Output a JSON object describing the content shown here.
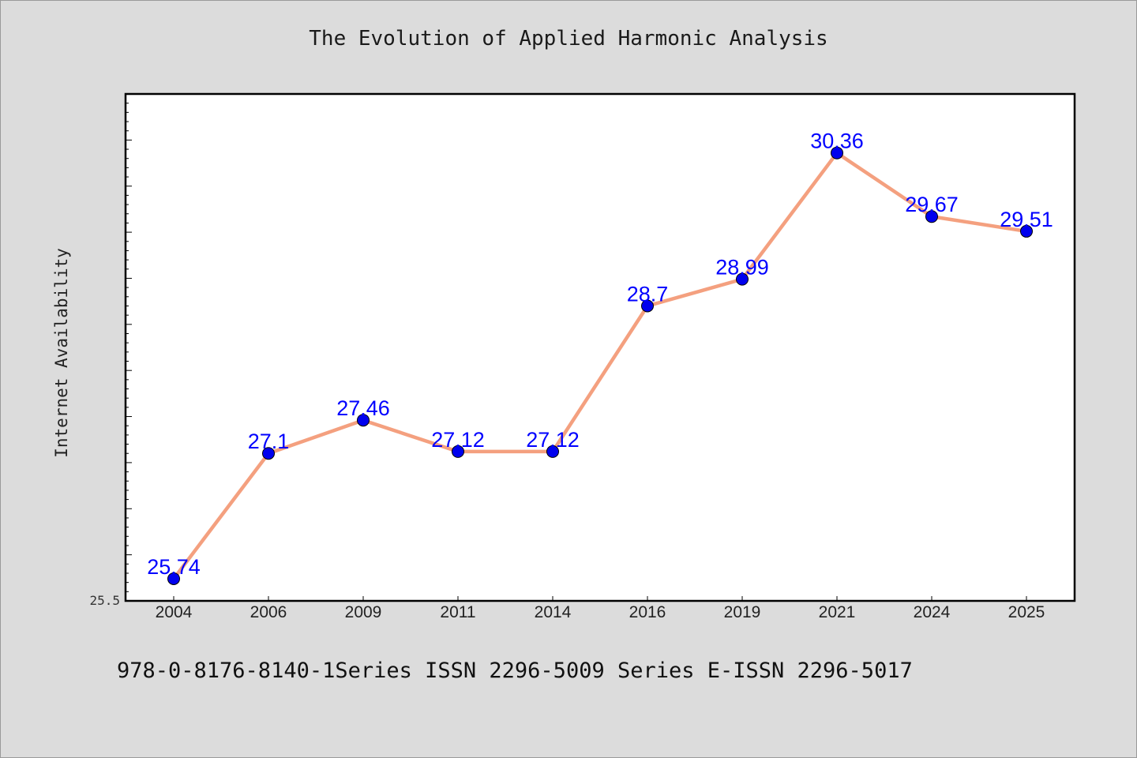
{
  "chart_data": {
    "type": "line",
    "title": "The Evolution of Applied Harmonic Analysis",
    "xlabel": "",
    "ylabel": "Internet Availability",
    "categories": [
      "2004",
      "2006",
      "2009",
      "2011",
      "2014",
      "2016",
      "2019",
      "2021",
      "2024",
      "2025"
    ],
    "series": [
      {
        "values": [
          25.74,
          27.1,
          27.46,
          27.12,
          27.12,
          28.7,
          28.99,
          30.36,
          29.67,
          29.51
        ],
        "labels": [
          "25.74",
          "27.1",
          "27.46",
          "27.12",
          "27.12",
          "28.7",
          "28.99",
          "30.36",
          "29.67",
          "29.51"
        ]
      }
    ],
    "ylim": [
      25.5,
      31.0
    ],
    "y_tick_label": "25.5",
    "grid": false,
    "data_labels": true
  },
  "colors": {
    "line": "#f4a07f",
    "marker": "#0000ee",
    "label": "#0000ff",
    "background": "#dcdcdc",
    "plot_background": "#ffffff"
  },
  "footer": {
    "text": "978-0-8176-8140-1Series ISSN 2296-5009 Series E-ISSN 2296-5017"
  }
}
